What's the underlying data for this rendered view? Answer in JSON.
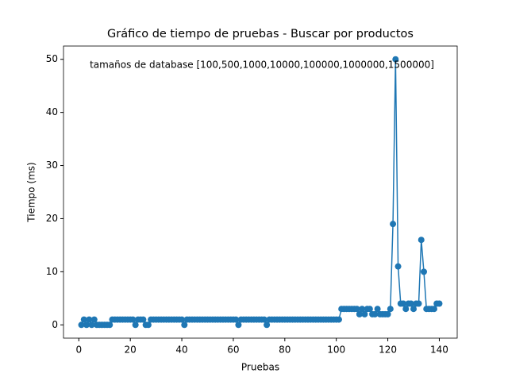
{
  "chart_data": {
    "type": "line",
    "title": "Gráfico de tiempo de pruebas - Buscar por productos",
    "annotation": "tamaños de database [100,500,1000,10000,100000,1000000,1500000]",
    "xlabel": "Pruebas",
    "ylabel": "Tiempo (ms)",
    "x": [
      1,
      2,
      3,
      4,
      5,
      6,
      7,
      8,
      9,
      10,
      11,
      12,
      13,
      14,
      15,
      16,
      17,
      18,
      19,
      20,
      21,
      22,
      23,
      24,
      25,
      26,
      27,
      28,
      29,
      30,
      31,
      32,
      33,
      34,
      35,
      36,
      37,
      38,
      39,
      40,
      41,
      42,
      43,
      44,
      45,
      46,
      47,
      48,
      49,
      50,
      51,
      52,
      53,
      54,
      55,
      56,
      57,
      58,
      59,
      60,
      61,
      62,
      63,
      64,
      65,
      66,
      67,
      68,
      69,
      70,
      71,
      72,
      73,
      74,
      75,
      76,
      77,
      78,
      79,
      80,
      81,
      82,
      83,
      84,
      85,
      86,
      87,
      88,
      89,
      90,
      91,
      92,
      93,
      94,
      95,
      96,
      97,
      98,
      99,
      100,
      101,
      102,
      103,
      104,
      105,
      106,
      107,
      108,
      109,
      110,
      111,
      112,
      113,
      114,
      115,
      116,
      117,
      118,
      119,
      120,
      121,
      122,
      123,
      124,
      125,
      126,
      127,
      128,
      129,
      130,
      131,
      132,
      133,
      134,
      135,
      136,
      137,
      138,
      139,
      140
    ],
    "series": [
      {
        "name": "Tiempo",
        "color": "#1f77b4",
        "values": [
          0,
          1,
          0,
          1,
          0,
          1,
          0,
          0,
          0,
          0,
          0,
          0,
          1,
          1,
          1,
          1,
          1,
          1,
          1,
          1,
          1,
          0,
          1,
          1,
          1,
          0,
          0,
          1,
          1,
          1,
          1,
          1,
          1,
          1,
          1,
          1,
          1,
          1,
          1,
          1,
          0,
          1,
          1,
          1,
          1,
          1,
          1,
          1,
          1,
          1,
          1,
          1,
          1,
          1,
          1,
          1,
          1,
          1,
          1,
          1,
          1,
          0,
          1,
          1,
          1,
          1,
          1,
          1,
          1,
          1,
          1,
          1,
          0,
          1,
          1,
          1,
          1,
          1,
          1,
          1,
          1,
          1,
          1,
          1,
          1,
          1,
          1,
          1,
          1,
          1,
          1,
          1,
          1,
          1,
          1,
          1,
          1,
          1,
          1,
          1,
          1,
          3,
          3,
          3,
          3,
          3,
          3,
          3,
          2,
          3,
          2,
          3,
          3,
          2,
          2,
          3,
          2,
          2,
          2,
          2,
          3,
          19,
          50,
          11,
          4,
          4,
          3,
          4,
          4,
          3,
          4,
          4,
          16,
          10,
          3,
          3,
          3,
          3,
          4,
          4
        ]
      }
    ],
    "xlim": [
      -5.95,
      146.95
    ],
    "ylim": [
      -2.5,
      52.5
    ],
    "xticks": [
      0,
      20,
      40,
      60,
      80,
      100,
      120,
      140
    ],
    "yticks": [
      0,
      10,
      20,
      30,
      40,
      50
    ]
  }
}
